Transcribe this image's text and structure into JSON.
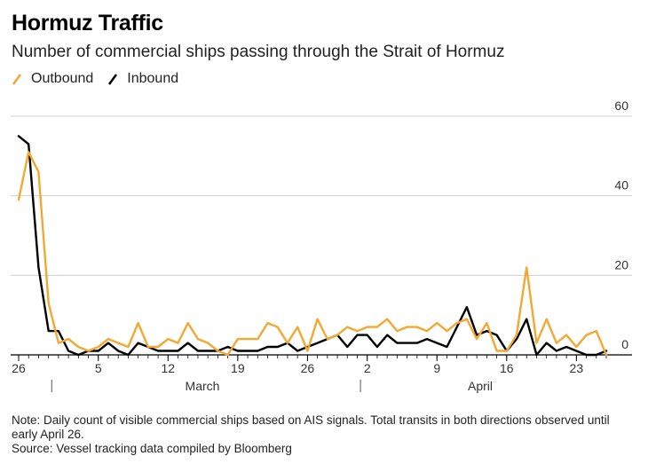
{
  "title": "Hormuz Traffic",
  "subtitle": "Number of commercial ships passing through the Strait of Hormuz",
  "legend": [
    {
      "label": "Outbound",
      "color": "#F2A833"
    },
    {
      "label": "Inbound",
      "color": "#000000"
    }
  ],
  "note": {
    "line1": "Note: Daily count of visible commercial ships based on AIS signals. Total transits in both directions observed until early April 26.",
    "line2": "Source: Vessel tracking data compiled by Bloomberg"
  },
  "chart_data": {
    "type": "line",
    "x": [
      "Feb 26",
      "Feb 27",
      "Feb 28",
      "Mar 1",
      "Mar 2",
      "Mar 3",
      "Mar 4",
      "Mar 5",
      "Mar 6",
      "Mar 7",
      "Mar 8",
      "Mar 9",
      "Mar 10",
      "Mar 11",
      "Mar 12",
      "Mar 13",
      "Mar 14",
      "Mar 15",
      "Mar 16",
      "Mar 17",
      "Mar 18",
      "Mar 19",
      "Mar 20",
      "Mar 21",
      "Mar 22",
      "Mar 23",
      "Mar 24",
      "Mar 25",
      "Mar 26",
      "Mar 27",
      "Mar 28",
      "Mar 29",
      "Mar 30",
      "Mar 31",
      "Apr 1",
      "Apr 2",
      "Apr 3",
      "Apr 4",
      "Apr 5",
      "Apr 6",
      "Apr 7",
      "Apr 8",
      "Apr 9",
      "Apr 10",
      "Apr 11",
      "Apr 12",
      "Apr 13",
      "Apr 14",
      "Apr 15",
      "Apr 16",
      "Apr 17",
      "Apr 18",
      "Apr 19",
      "Apr 20",
      "Apr 21",
      "Apr 22",
      "Apr 23",
      "Apr 24",
      "Apr 25",
      "Apr 26"
    ],
    "series": [
      {
        "name": "Outbound",
        "color": "#F2A833",
        "values": [
          39,
          51,
          46,
          13,
          3,
          4,
          2,
          1,
          2,
          4,
          3,
          2,
          8,
          2,
          2,
          4,
          3,
          8,
          4,
          3,
          1,
          0,
          4,
          4,
          4,
          8,
          7,
          3,
          7,
          1,
          9,
          4,
          5,
          7,
          6,
          7,
          7,
          9,
          6,
          7,
          7,
          6,
          8,
          6,
          8,
          9,
          4,
          8,
          1,
          1,
          5,
          22,
          3,
          9,
          3,
          5,
          2,
          5,
          6,
          0
        ]
      },
      {
        "name": "Inbound",
        "color": "#000000",
        "values": [
          55,
          53,
          22,
          6,
          6,
          1,
          0,
          1,
          1,
          3,
          1,
          0,
          3,
          2,
          1,
          1,
          1,
          3,
          1,
          1,
          1,
          2,
          1,
          1,
          1,
          2,
          2,
          3,
          1,
          2,
          3,
          4,
          5,
          2,
          5,
          5,
          2,
          5,
          3,
          3,
          3,
          4,
          3,
          2,
          7,
          12,
          5,
          6,
          5,
          1,
          4,
          9,
          0,
          3,
          1,
          2,
          1,
          0,
          0,
          1
        ]
      }
    ],
    "x_tick_labels": [
      {
        "label": "26",
        "index": 0
      },
      {
        "label": "5",
        "index": 8
      },
      {
        "label": "12",
        "index": 15
      },
      {
        "label": "19",
        "index": 22
      },
      {
        "label": "26",
        "index": 29
      },
      {
        "label": "2",
        "index": 35
      },
      {
        "label": "9",
        "index": 42
      },
      {
        "label": "16",
        "index": 49
      },
      {
        "label": "23",
        "index": 56
      }
    ],
    "month_labels": [
      {
        "label": "March",
        "start_index": 3
      },
      {
        "label": "April",
        "start_index": 34
      }
    ],
    "y_ticks": [
      0,
      20,
      40,
      60
    ],
    "ylim": [
      0,
      60
    ],
    "grid": true,
    "legend_position": "top-left",
    "xlabel": "",
    "ylabel": ""
  }
}
